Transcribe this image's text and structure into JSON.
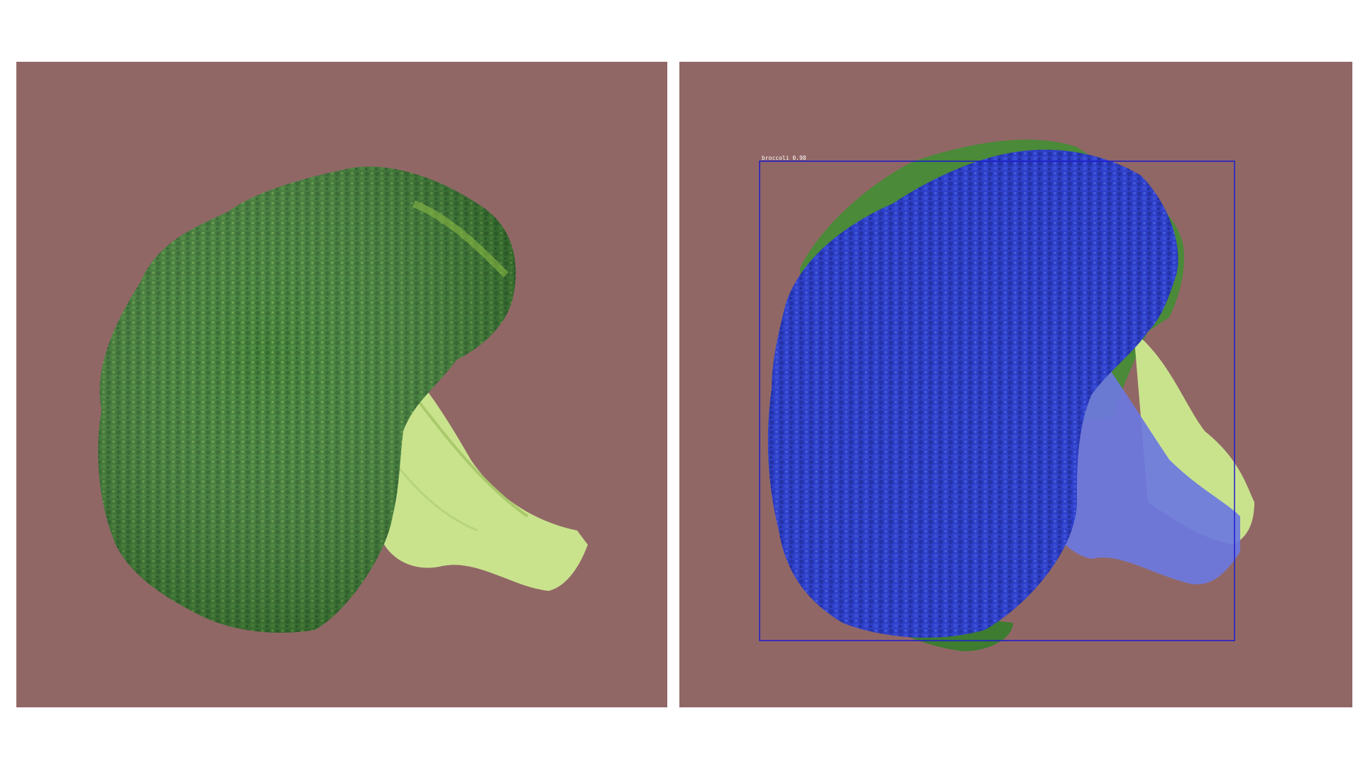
{
  "colors": {
    "background": "#ffffff",
    "panel_background": "#916766",
    "floret_dark": "#2f6f2c",
    "floret_mid": "#4f8c3a",
    "floret_light": "#8fbf45",
    "stem": "#c9e38d",
    "stem_light": "#dcefae",
    "mask_fill": "#2f3fd0",
    "mask_stem": "#6c78e0",
    "box_stroke": "#1a1acf",
    "label_text": "#ffffff"
  },
  "panels": {
    "left": {
      "name": "original-image",
      "subject_icon": "broccoli-icon"
    },
    "right": {
      "name": "segmented-image",
      "subject_icon": "broccoli-icon"
    }
  },
  "detection": {
    "label": "broccoli 0.98",
    "class": "broccoli",
    "score": 0.98
  }
}
